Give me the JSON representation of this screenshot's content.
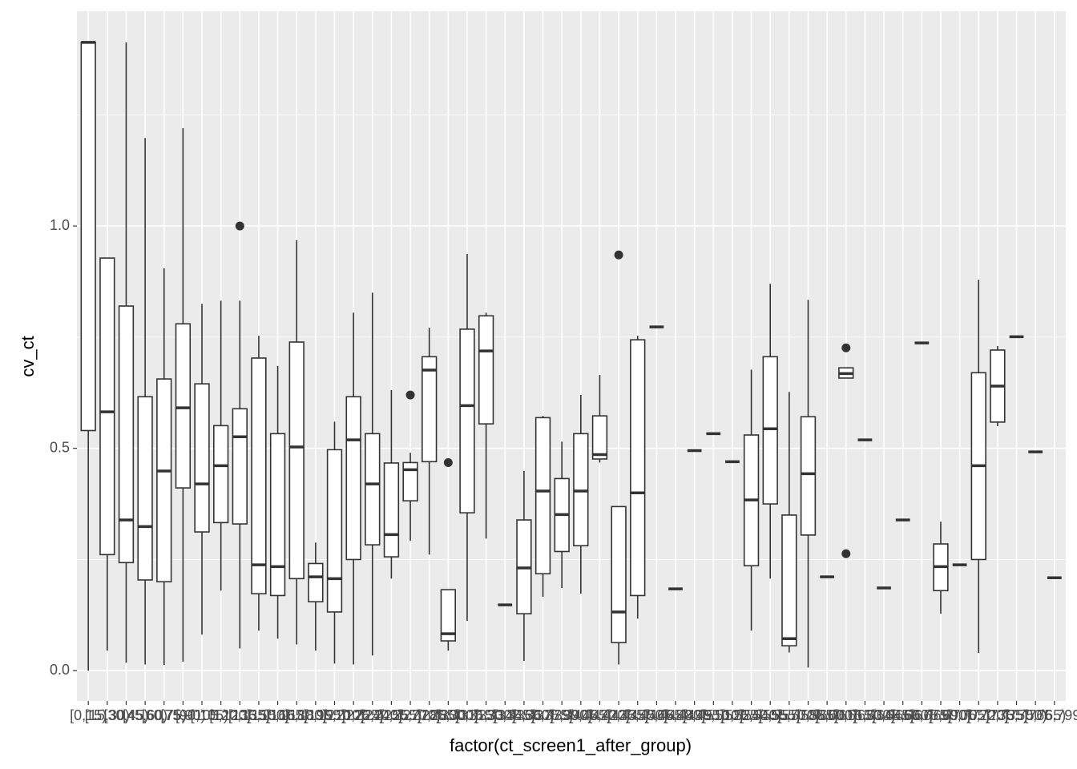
{
  "chart_data": {
    "type": "boxplot",
    "x_label": "factor(ct_screen1_after_group)",
    "y_label": "cv_ct",
    "categories": [
      "[0,15)",
      "[15,30)",
      "[30,45)",
      "[45,60)",
      "[60,75)",
      "[75,90)",
      "[90,105)",
      "[105,120)",
      "[120,135)",
      "[135,150)",
      "[150,165)",
      "[165,180)",
      "[180,195)",
      "[195,210)",
      "[210,225)",
      "[225,240)",
      "[240,255)",
      "[255,270)",
      "[270,285)",
      "[285,300)",
      "[300,315)",
      "[315,330)",
      "[330,345)",
      "[345,360)",
      "[360,375)",
      "[375,390)",
      "[390,405)",
      "[405,420)",
      "[420,435)",
      "[435,450)",
      "[450,465)",
      "[465,480)",
      "[480,495)",
      "[495,510)",
      "[510,525)",
      "[525,540)",
      "[540,555)",
      "[555,570)",
      "[570,585)",
      "[585,600)",
      "[600,615)",
      "[615,630)",
      "[630,645)",
      "[645,660)",
      "[660,675)",
      "[675,690)",
      "[690,705)",
      "[705,720)",
      "[720,735)",
      "[735,750)",
      "[750,765)",
      "[765,799]"
    ],
    "boxes": [
      {
        "min": 0.0,
        "q1": 0.54,
        "median": 1.413,
        "q3": 1.413,
        "max": 1.413,
        "outliers": []
      },
      {
        "min": 0.045,
        "q1": 0.261,
        "median": 0.582,
        "q3": 0.928,
        "max": 0.928,
        "outliers": []
      },
      {
        "min": 0.018,
        "q1": 0.243,
        "median": 0.339,
        "q3": 0.82,
        "max": 1.413,
        "outliers": []
      },
      {
        "min": 0.014,
        "q1": 0.204,
        "median": 0.324,
        "q3": 0.616,
        "max": 1.198,
        "outliers": []
      },
      {
        "min": 0.013,
        "q1": 0.2,
        "median": 0.449,
        "q3": 0.656,
        "max": 0.905,
        "outliers": []
      },
      {
        "min": 0.02,
        "q1": 0.411,
        "median": 0.591,
        "q3": 0.78,
        "max": 1.22,
        "outliers": []
      },
      {
        "min": 0.081,
        "q1": 0.312,
        "median": 0.42,
        "q3": 0.645,
        "max": 0.825,
        "outliers": []
      },
      {
        "min": 0.18,
        "q1": 0.333,
        "median": 0.461,
        "q3": 0.551,
        "max": 0.832,
        "outliers": []
      },
      {
        "min": 0.05,
        "q1": 0.33,
        "median": 0.526,
        "q3": 0.589,
        "max": 0.832,
        "outliers": [
          1.0
        ]
      },
      {
        "min": 0.09,
        "q1": 0.173,
        "median": 0.238,
        "q3": 0.703,
        "max": 0.753,
        "outliers": []
      },
      {
        "min": 0.072,
        "q1": 0.169,
        "median": 0.234,
        "q3": 0.533,
        "max": 0.685,
        "outliers": []
      },
      {
        "min": 0.059,
        "q1": 0.207,
        "median": 0.503,
        "q3": 0.739,
        "max": 0.968,
        "outliers": []
      },
      {
        "min": 0.045,
        "q1": 0.155,
        "median": 0.211,
        "q3": 0.241,
        "max": 0.288,
        "outliers": []
      },
      {
        "min": 0.016,
        "q1": 0.132,
        "median": 0.207,
        "q3": 0.497,
        "max": 0.56,
        "outliers": []
      },
      {
        "min": 0.014,
        "q1": 0.25,
        "median": 0.519,
        "q3": 0.616,
        "max": 0.805,
        "outliers": []
      },
      {
        "min": 0.034,
        "q1": 0.283,
        "median": 0.42,
        "q3": 0.533,
        "max": 0.85,
        "outliers": []
      },
      {
        "min": 0.207,
        "q1": 0.256,
        "median": 0.306,
        "q3": 0.467,
        "max": 0.631,
        "outliers": []
      },
      {
        "min": 0.292,
        "q1": 0.382,
        "median": 0.452,
        "q3": 0.468,
        "max": 0.49,
        "outliers": [
          0.62
        ]
      },
      {
        "min": 0.261,
        "q1": 0.47,
        "median": 0.676,
        "q3": 0.706,
        "max": 0.771,
        "outliers": []
      },
      {
        "min": 0.045,
        "q1": 0.067,
        "median": 0.083,
        "q3": 0.182,
        "max": 0.182,
        "outliers": [
          0.468
        ]
      },
      {
        "min": 0.112,
        "q1": 0.355,
        "median": 0.596,
        "q3": 0.768,
        "max": 0.937,
        "outliers": []
      },
      {
        "min": 0.297,
        "q1": 0.555,
        "median": 0.719,
        "q3": 0.798,
        "max": 0.805,
        "outliers": []
      },
      {
        "min": 0.148,
        "q1": 0.148,
        "median": 0.148,
        "q3": 0.148,
        "max": 0.148,
        "outliers": []
      },
      {
        "min": 0.022,
        "q1": 0.128,
        "median": 0.231,
        "q3": 0.339,
        "max": 0.449,
        "outliers": []
      },
      {
        "min": 0.166,
        "q1": 0.218,
        "median": 0.404,
        "q3": 0.569,
        "max": 0.573,
        "outliers": []
      },
      {
        "min": 0.186,
        "q1": 0.268,
        "median": 0.351,
        "q3": 0.432,
        "max": 0.515,
        "outliers": []
      },
      {
        "min": 0.173,
        "q1": 0.281,
        "median": 0.404,
        "q3": 0.533,
        "max": 0.62,
        "outliers": []
      },
      {
        "min": 0.468,
        "q1": 0.476,
        "median": 0.486,
        "q3": 0.573,
        "max": 0.665,
        "outliers": []
      },
      {
        "min": 0.014,
        "q1": 0.063,
        "median": 0.132,
        "q3": 0.369,
        "max": 0.369,
        "outliers": [
          0.935
        ]
      },
      {
        "min": 0.117,
        "q1": 0.169,
        "median": 0.4,
        "q3": 0.744,
        "max": 0.753,
        "outliers": []
      },
      {
        "min": 0.773,
        "q1": 0.773,
        "median": 0.773,
        "q3": 0.773,
        "max": 0.773,
        "outliers": []
      },
      {
        "min": 0.184,
        "q1": 0.184,
        "median": 0.184,
        "q3": 0.184,
        "max": 0.184,
        "outliers": []
      },
      {
        "min": 0.495,
        "q1": 0.495,
        "median": 0.495,
        "q3": 0.495,
        "max": 0.495,
        "outliers": []
      },
      {
        "min": 0.533,
        "q1": 0.533,
        "median": 0.533,
        "q3": 0.533,
        "max": 0.533,
        "outliers": []
      },
      {
        "min": 0.47,
        "q1": 0.47,
        "median": 0.47,
        "q3": 0.47,
        "max": 0.47,
        "outliers": []
      },
      {
        "min": 0.09,
        "q1": 0.236,
        "median": 0.384,
        "q3": 0.53,
        "max": 0.677,
        "outliers": []
      },
      {
        "min": 0.207,
        "q1": 0.375,
        "median": 0.544,
        "q3": 0.706,
        "max": 0.87,
        "outliers": []
      },
      {
        "min": 0.041,
        "q1": 0.056,
        "median": 0.072,
        "q3": 0.35,
        "max": 0.627,
        "outliers": []
      },
      {
        "min": 0.007,
        "q1": 0.305,
        "median": 0.443,
        "q3": 0.571,
        "max": 0.834,
        "outliers": []
      },
      {
        "min": 0.211,
        "q1": 0.211,
        "median": 0.211,
        "q3": 0.211,
        "max": 0.211,
        "outliers": []
      },
      {
        "min": 0.658,
        "q1": 0.658,
        "median": 0.668,
        "q3": 0.681,
        "max": 0.681,
        "outliers": [
          0.726,
          0.263
        ]
      },
      {
        "min": 0.519,
        "q1": 0.519,
        "median": 0.519,
        "q3": 0.519,
        "max": 0.519,
        "outliers": []
      },
      {
        "min": 0.186,
        "q1": 0.186,
        "median": 0.186,
        "q3": 0.186,
        "max": 0.186,
        "outliers": []
      },
      {
        "min": 0.339,
        "q1": 0.339,
        "median": 0.339,
        "q3": 0.339,
        "max": 0.339,
        "outliers": []
      },
      {
        "min": 0.737,
        "q1": 0.737,
        "median": 0.737,
        "q3": 0.737,
        "max": 0.737,
        "outliers": []
      },
      {
        "min": 0.128,
        "q1": 0.18,
        "median": 0.234,
        "q3": 0.285,
        "max": 0.335,
        "outliers": []
      },
      {
        "min": 0.238,
        "q1": 0.238,
        "median": 0.238,
        "q3": 0.238,
        "max": 0.238,
        "outliers": []
      },
      {
        "min": 0.04,
        "q1": 0.25,
        "median": 0.461,
        "q3": 0.67,
        "max": 0.879,
        "outliers": []
      },
      {
        "min": 0.55,
        "q1": 0.559,
        "median": 0.64,
        "q3": 0.721,
        "max": 0.73,
        "outliers": []
      },
      {
        "min": 0.751,
        "q1": 0.751,
        "median": 0.751,
        "q3": 0.751,
        "max": 0.751,
        "outliers": []
      },
      {
        "min": 0.492,
        "q1": 0.492,
        "median": 0.492,
        "q3": 0.492,
        "max": 0.492,
        "outliers": []
      },
      {
        "min": 0.209,
        "q1": 0.209,
        "median": 0.209,
        "q3": 0.209,
        "max": 0.209,
        "outliers": []
      }
    ],
    "ylim": [
      -0.068,
      1.483
    ],
    "yticks": [
      {
        "value": 0,
        "label": "0.0"
      },
      {
        "value": 0.5,
        "label": "0.5"
      },
      {
        "value": 1,
        "label": "1.0"
      }
    ],
    "y_minor_ticks": [
      0.25,
      0.75,
      1.25
    ],
    "grid": true,
    "color": "#333333"
  }
}
